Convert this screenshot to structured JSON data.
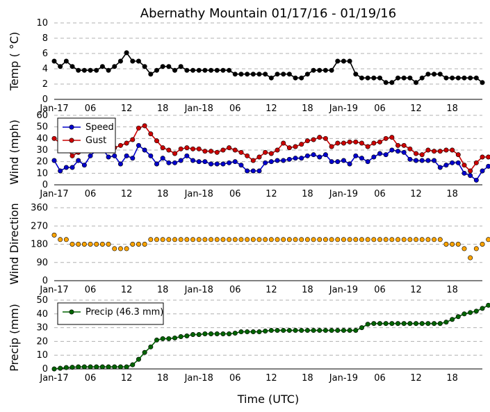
{
  "figure": {
    "title": "Abernathy Mountain 01/17/16 - 01/19/16",
    "xlabel": "Time (UTC)"
  },
  "colors": {
    "temp": "#000000",
    "speed": "#0000cc",
    "gust": "#cc0000",
    "direction": "#ffa500",
    "precip": "#006400",
    "grid": "#b0b0b0"
  },
  "x_ticks": {
    "hours": [
      0,
      6,
      12,
      18,
      24,
      30,
      36,
      42,
      48,
      54,
      60,
      66
    ],
    "labels": [
      "Jan-17",
      "06",
      "12",
      "18",
      "Jan-18",
      "06",
      "12",
      "18",
      "Jan-19",
      "06",
      "12",
      "18"
    ],
    "xlim": [
      0,
      71
    ]
  },
  "chart_data": [
    {
      "type": "line",
      "ylabel": "Temp ( °C)",
      "ylim": [
        0,
        10
      ],
      "yticks": [
        0,
        2,
        4,
        6,
        8,
        10
      ],
      "grid": true,
      "series": [
        {
          "key": "temp",
          "values": [
            5,
            4.3,
            5,
            4.3,
            3.8,
            3.8,
            3.8,
            3.8,
            4.3,
            3.8,
            4.3,
            5,
            6.1,
            5,
            5,
            4.3,
            3.3,
            3.8,
            4.3,
            4.3,
            3.8,
            4.3,
            3.8,
            3.8,
            3.8,
            3.8,
            3.8,
            3.8,
            3.8,
            3.8,
            3.3,
            3.3,
            3.3,
            3.3,
            3.3,
            3.3,
            2.8,
            3.3,
            3.3,
            3.3,
            2.8,
            2.8,
            3.3,
            3.8,
            3.8,
            3.8,
            3.8,
            5,
            5,
            5,
            3.3,
            2.8,
            2.8,
            2.8,
            2.8,
            2.2,
            2.2,
            2.8,
            2.8,
            2.8,
            2.2,
            2.8,
            3.3,
            3.3,
            3.3,
            2.8,
            2.8,
            2.8,
            2.8,
            2.8,
            2.8,
            2.2
          ]
        }
      ]
    },
    {
      "type": "line",
      "ylabel": "Wind (mph)",
      "ylim": [
        0,
        60
      ],
      "yticks": [
        0,
        10,
        20,
        30,
        40,
        50,
        60
      ],
      "grid": true,
      "legend": "upper-left",
      "series": [
        {
          "key": "speed",
          "name": "Speed",
          "values": [
            21,
            12,
            15,
            15,
            21,
            17,
            25,
            30,
            31,
            24,
            25,
            18,
            25,
            23,
            34,
            30,
            25,
            18,
            23,
            19,
            19,
            21,
            25,
            21,
            20,
            20,
            18,
            18,
            18,
            19,
            20,
            17,
            12,
            12,
            12,
            19,
            20,
            21,
            21,
            22,
            23,
            23,
            25,
            26,
            24,
            26,
            20,
            20,
            21,
            18,
            25,
            23,
            20,
            24,
            27,
            26,
            30,
            29,
            28,
            22,
            21,
            21,
            21,
            21,
            15,
            17,
            19,
            19,
            10,
            8,
            4,
            12,
            16
          ]
        },
        {
          "key": "gust",
          "name": "Gust",
          "values": [
            40,
            36,
            32,
            25,
            28,
            33,
            35,
            30,
            36,
            33,
            32,
            34,
            36,
            39,
            49,
            51,
            44,
            38,
            32,
            30,
            27,
            31,
            32,
            31,
            31,
            29,
            29,
            28,
            30,
            32,
            30,
            28,
            25,
            21,
            24,
            28,
            27,
            30,
            36,
            32,
            33,
            35,
            38,
            39,
            41,
            40,
            33,
            36,
            36,
            37,
            37,
            36,
            33,
            36,
            37,
            40,
            41,
            34,
            34,
            31,
            27,
            26,
            30,
            29,
            29,
            30,
            30,
            26,
            17,
            12,
            19,
            24,
            24
          ]
        }
      ]
    },
    {
      "type": "scatter",
      "ylabel": "Wind Direction",
      "ylim": [
        0,
        360
      ],
      "yticks": [
        0,
        90,
        180,
        270,
        360
      ],
      "grid": true,
      "series": [
        {
          "key": "direction",
          "values": [
            225,
            203,
            203,
            180,
            180,
            180,
            180,
            180,
            180,
            180,
            158,
            158,
            158,
            180,
            180,
            180,
            203,
            203,
            203,
            203,
            203,
            203,
            203,
            203,
            203,
            203,
            203,
            203,
            203,
            203,
            203,
            203,
            203,
            203,
            203,
            203,
            203,
            203,
            203,
            203,
            203,
            203,
            203,
            203,
            203,
            203,
            203,
            203,
            203,
            203,
            203,
            203,
            203,
            203,
            203,
            203,
            203,
            203,
            203,
            203,
            203,
            203,
            203,
            203,
            203,
            180,
            180,
            180,
            158,
            113,
            158,
            180,
            203
          ]
        }
      ]
    },
    {
      "type": "line",
      "ylabel": "Precip (mm)",
      "ylim": [
        0,
        50
      ],
      "yticks": [
        0,
        10,
        20,
        30,
        40,
        50
      ],
      "grid": true,
      "legend": "upper-left",
      "series": [
        {
          "key": "precip",
          "name": "Precip (46.3 mm)",
          "values": [
            0,
            0.5,
            1,
            1.2,
            1.5,
            1.5,
            1.5,
            1.5,
            1.5,
            1.5,
            1.5,
            1.5,
            1.5,
            3,
            7,
            12,
            16,
            21,
            22,
            22,
            22.5,
            23.5,
            24,
            25,
            25,
            25.5,
            25.5,
            25.5,
            25.5,
            25.5,
            26,
            27,
            27,
            27,
            27,
            27.5,
            28,
            28,
            28,
            28,
            28,
            28,
            28,
            28,
            28,
            28,
            28,
            28,
            28,
            28,
            28,
            30,
            32.5,
            33,
            33,
            33,
            33,
            33,
            33,
            33,
            33,
            33,
            33,
            33,
            33,
            34,
            36,
            38,
            40,
            41,
            42,
            44,
            46.3
          ]
        }
      ]
    }
  ]
}
